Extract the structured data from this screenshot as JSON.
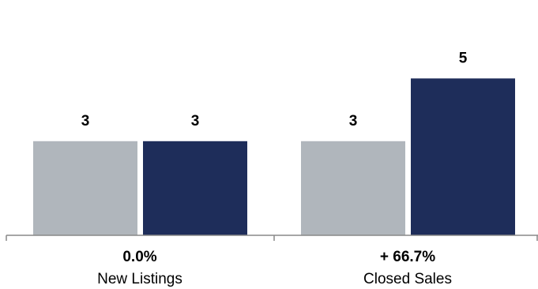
{
  "chart_data": {
    "type": "bar",
    "categories": [
      "New Listings",
      "Closed Sales"
    ],
    "category_changes": [
      "0.0%",
      "+ 66.7%"
    ],
    "series": [
      {
        "values": [
          3,
          3
        ],
        "color": "#b0b6bc"
      },
      {
        "values": [
          3,
          5
        ],
        "color": "#1e2d5a"
      }
    ],
    "data_labels": [
      [
        "3",
        "3"
      ],
      [
        "3",
        "5"
      ]
    ],
    "ylim": [
      0,
      7.5
    ],
    "grid": false,
    "legend": "none",
    "axis_color": "#888888"
  }
}
